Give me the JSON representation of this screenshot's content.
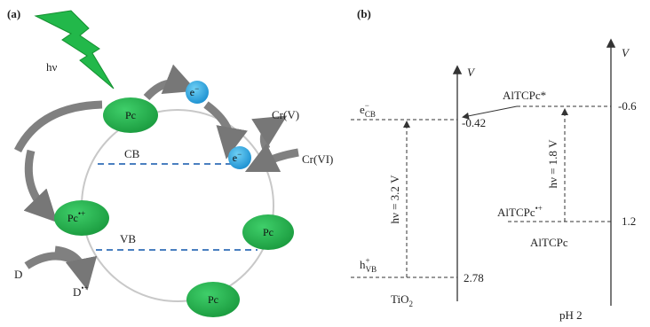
{
  "panel_a": {
    "label": "(a)",
    "light": "hν",
    "pc_nodes": [
      {
        "base": "Pc"
      },
      {
        "base": "Pc",
        "sup": "•+"
      },
      {
        "base": "Pc"
      },
      {
        "base": "Pc"
      }
    ],
    "electrons": [
      {
        "base": "e",
        "sup": "−"
      },
      {
        "base": "e",
        "sup": "−"
      }
    ],
    "bands": [
      "CB",
      "VB"
    ],
    "chromium": [
      "Cr(V)",
      "Cr(VI)"
    ],
    "donor": [
      {
        "base": "D"
      },
      {
        "base": "D",
        "sup": "•+"
      }
    ]
  },
  "panel_b": {
    "label": "(b)",
    "axis_labels": [
      "V",
      "V"
    ],
    "tio2": {
      "name": {
        "base": "TiO",
        "sub": "2"
      },
      "cb": {
        "base": "e",
        "sup": "−",
        "sub": "CB"
      },
      "cb_potential": "-0.42",
      "vb": {
        "base": "h",
        "sup": "+",
        "sub": "VB"
      },
      "vb_potential": "2.78",
      "excitation": "hν = 3.2 V"
    },
    "altcpc": {
      "excited": "AlTCPc*",
      "excited_potential": "-0.6",
      "oxidized": {
        "base": "AlTCPc",
        "sup": "•+"
      },
      "oxidized_potential": "1.2",
      "name": "AlTCPc",
      "excitation": "hν = 1.8 V"
    },
    "condition": "pH 2"
  }
}
